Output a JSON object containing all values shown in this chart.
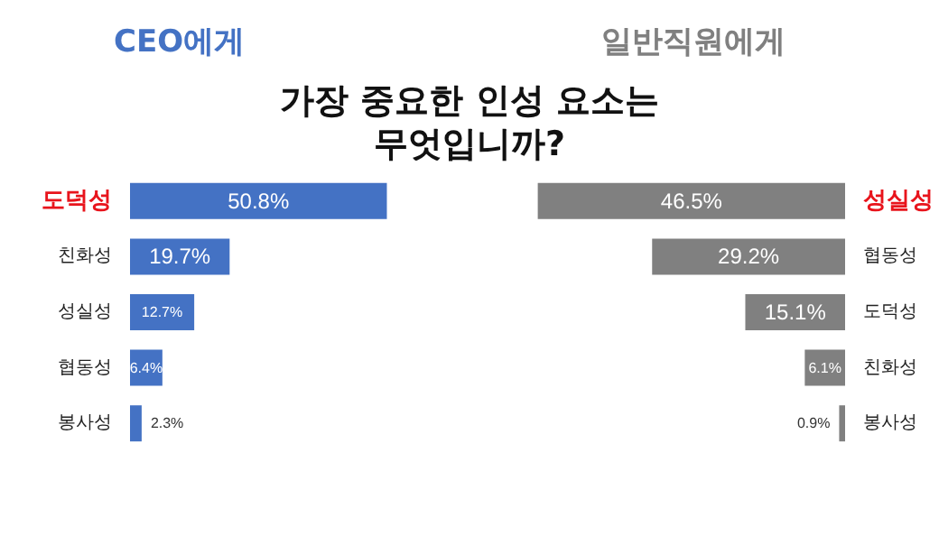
{
  "chart_data": [
    {
      "type": "bar",
      "title": "가장 중요한 인성 요소는 무엇입니까?",
      "subtitle": "CEO에게",
      "orientation": "horizontal",
      "color": "#4472c4",
      "categories": [
        "도덕성",
        "친화성",
        "성실성",
        "협동성",
        "봉사성"
      ],
      "values": [
        50.8,
        19.7,
        12.7,
        6.4,
        2.3
      ],
      "value_labels": [
        "50.8%",
        "19.7%",
        "12.7%",
        "6.4%",
        "2.3%"
      ]
    },
    {
      "type": "bar",
      "subtitle": "일반직원에게",
      "orientation": "horizontal",
      "color": "#808080",
      "categories": [
        "성실성",
        "협동성",
        "도덕성",
        "친화성",
        "봉사성"
      ],
      "values": [
        46.5,
        29.2,
        15.1,
        6.1,
        0.9
      ],
      "value_labels": [
        "46.5%",
        "29.2%",
        "15.1%",
        "6.1%",
        "0.9%"
      ]
    }
  ]
}
